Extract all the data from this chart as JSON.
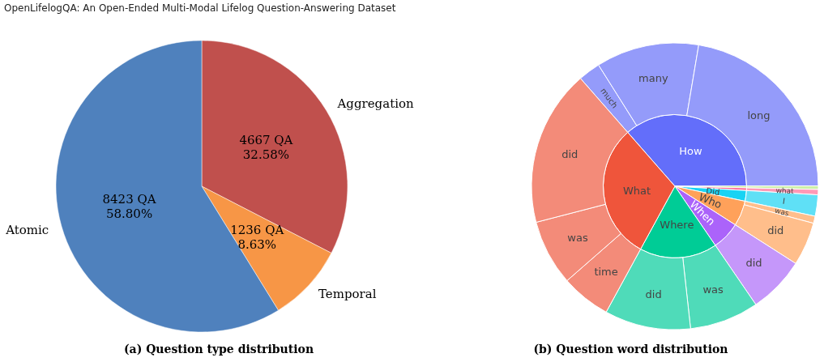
{
  "chart_data": [
    {
      "type": "pie",
      "title": "OpenLifelogQA: An Open-Ended Multi-Modal Lifelog Question-Answering Dataset",
      "categories": [
        "Aggregation",
        "Temporal",
        "Atomic"
      ],
      "values": [
        4667,
        1236,
        8423
      ],
      "value_labels": [
        "4667 QA\n32.58%",
        "1236 QA\n8.63%",
        "8423 QA\n58.80%"
      ],
      "colors": [
        "#c0504d",
        "#f79646",
        "#4f81bd"
      ],
      "annotations": [
        "(a) Question type distribution"
      ]
    },
    {
      "type": "pie",
      "categories": [
        "How",
        null,
        null,
        "Did",
        "Who",
        "When",
        "Where",
        "What"
      ],
      "values": [
        36.4,
        0.4,
        0.6,
        2.4,
        5.7,
        6.4,
        17.5,
        30.6
      ],
      "colors": [
        "#636efa",
        "#b6e880",
        "#ff6692",
        "#19d3f3",
        "#ffa15a",
        "#ab63fa",
        "#00cc96",
        "#ef553b"
      ],
      "annotations": [
        "(b) Question word distribution"
      ]
    },
    {
      "type": "donut",
      "categories": [
        "much",
        "many",
        "long",
        null,
        "what",
        "I",
        "was",
        "did",
        "did",
        "was",
        "did",
        "time",
        "was",
        "did"
      ],
      "values": [
        2.5,
        11.6,
        22.3,
        0.4,
        0.6,
        2.4,
        0.8,
        4.9,
        6.4,
        7.8,
        9.7,
        5.6,
        7.4,
        17.6
      ],
      "colors": [
        "#949bfa",
        "#949bfa",
        "#949bfa",
        "#cdefa8",
        "#ff99b6",
        "#5fe0f6",
        "#ffbe8b",
        "#ffbe8b",
        "#c597fa",
        "#4fdbb9",
        "#4fdbb9",
        "#f38b79",
        "#f38b79",
        "#f38b79"
      ]
    }
  ]
}
